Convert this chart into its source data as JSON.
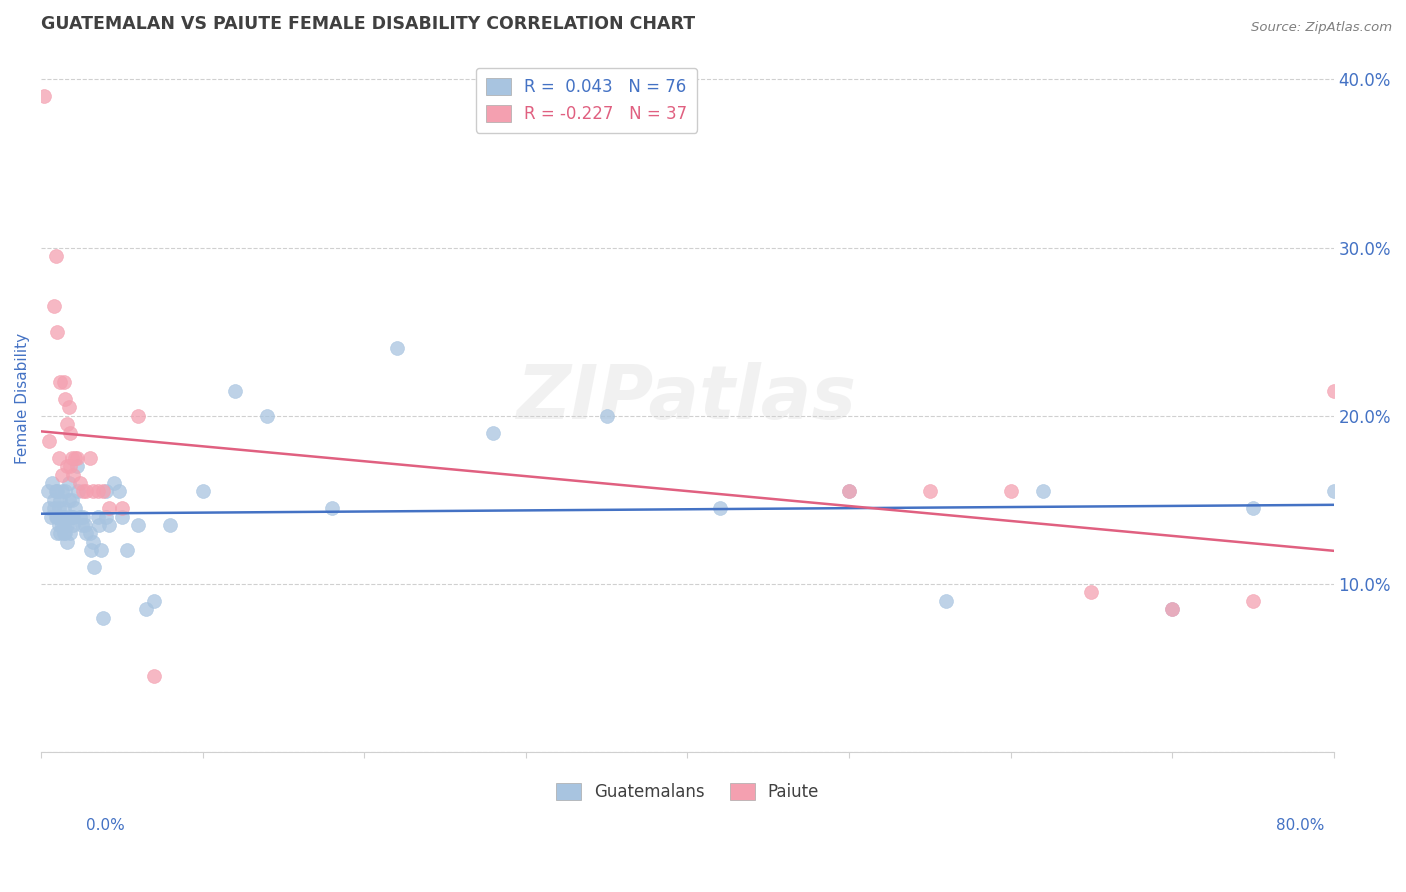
{
  "title": "GUATEMALAN VS PAIUTE FEMALE DISABILITY CORRELATION CHART",
  "source": "Source: ZipAtlas.com",
  "ylabel": "Female Disability",
  "xlim": [
    0.0,
    0.8
  ],
  "ylim": [
    0.0,
    0.42
  ],
  "guatemalan_R": 0.043,
  "guatemalan_N": 76,
  "paiute_R": -0.227,
  "paiute_N": 37,
  "guatemalan_color": "#a8c4e0",
  "paiute_color": "#f4a0b0",
  "guatemalan_line_color": "#4472c4",
  "paiute_line_color": "#e06080",
  "title_color": "#404040",
  "source_color": "#808080",
  "axis_label_color": "#4472c4",
  "tick_color": "#4472c4",
  "watermark": "ZIPatlas",
  "guatemalan_x": [
    0.004,
    0.005,
    0.006,
    0.007,
    0.008,
    0.008,
    0.009,
    0.009,
    0.01,
    0.01,
    0.01,
    0.011,
    0.011,
    0.012,
    0.012,
    0.012,
    0.013,
    0.013,
    0.013,
    0.014,
    0.014,
    0.014,
    0.015,
    0.015,
    0.015,
    0.016,
    0.016,
    0.017,
    0.017,
    0.018,
    0.018,
    0.019,
    0.019,
    0.02,
    0.02,
    0.021,
    0.022,
    0.023,
    0.024,
    0.025,
    0.026,
    0.027,
    0.028,
    0.03,
    0.031,
    0.032,
    0.033,
    0.035,
    0.036,
    0.037,
    0.038,
    0.04,
    0.04,
    0.042,
    0.045,
    0.048,
    0.05,
    0.053,
    0.06,
    0.065,
    0.07,
    0.08,
    0.1,
    0.12,
    0.14,
    0.18,
    0.22,
    0.28,
    0.35,
    0.42,
    0.5,
    0.56,
    0.62,
    0.7,
    0.75,
    0.8
  ],
  "guatemalan_y": [
    0.155,
    0.145,
    0.14,
    0.16,
    0.15,
    0.145,
    0.14,
    0.155,
    0.14,
    0.13,
    0.155,
    0.145,
    0.135,
    0.14,
    0.13,
    0.15,
    0.14,
    0.135,
    0.155,
    0.135,
    0.13,
    0.145,
    0.13,
    0.14,
    0.155,
    0.135,
    0.125,
    0.16,
    0.15,
    0.14,
    0.13,
    0.15,
    0.14,
    0.14,
    0.135,
    0.145,
    0.17,
    0.155,
    0.14,
    0.135,
    0.14,
    0.135,
    0.13,
    0.13,
    0.12,
    0.125,
    0.11,
    0.14,
    0.135,
    0.12,
    0.08,
    0.155,
    0.14,
    0.135,
    0.16,
    0.155,
    0.14,
    0.12,
    0.135,
    0.085,
    0.09,
    0.135,
    0.155,
    0.215,
    0.2,
    0.145,
    0.24,
    0.19,
    0.2,
    0.145,
    0.155,
    0.09,
    0.155,
    0.085,
    0.145,
    0.155
  ],
  "paiute_x": [
    0.002,
    0.005,
    0.008,
    0.009,
    0.01,
    0.011,
    0.012,
    0.013,
    0.014,
    0.015,
    0.016,
    0.016,
    0.017,
    0.018,
    0.018,
    0.019,
    0.02,
    0.021,
    0.022,
    0.024,
    0.026,
    0.028,
    0.03,
    0.032,
    0.035,
    0.038,
    0.042,
    0.05,
    0.06,
    0.07,
    0.5,
    0.55,
    0.6,
    0.65,
    0.7,
    0.75,
    0.8
  ],
  "paiute_y": [
    0.39,
    0.185,
    0.265,
    0.295,
    0.25,
    0.175,
    0.22,
    0.165,
    0.22,
    0.21,
    0.17,
    0.195,
    0.205,
    0.19,
    0.17,
    0.175,
    0.165,
    0.175,
    0.175,
    0.16,
    0.155,
    0.155,
    0.175,
    0.155,
    0.155,
    0.155,
    0.145,
    0.145,
    0.2,
    0.045,
    0.155,
    0.155,
    0.155,
    0.095,
    0.085,
    0.09,
    0.215
  ],
  "right_yticks": [
    0.0,
    0.1,
    0.2,
    0.3,
    0.4
  ],
  "right_ytick_labels": [
    "",
    "10.0%",
    "20.0%",
    "30.0%",
    "40.0%"
  ],
  "xtick_positions": [
    0.0,
    0.1,
    0.2,
    0.3,
    0.4,
    0.5,
    0.6,
    0.7,
    0.8
  ],
  "grid_color": "#d0d0d0",
  "legend_R_guatemalan_color": "#4472c4",
  "legend_R_paiute_color": "#e06080"
}
